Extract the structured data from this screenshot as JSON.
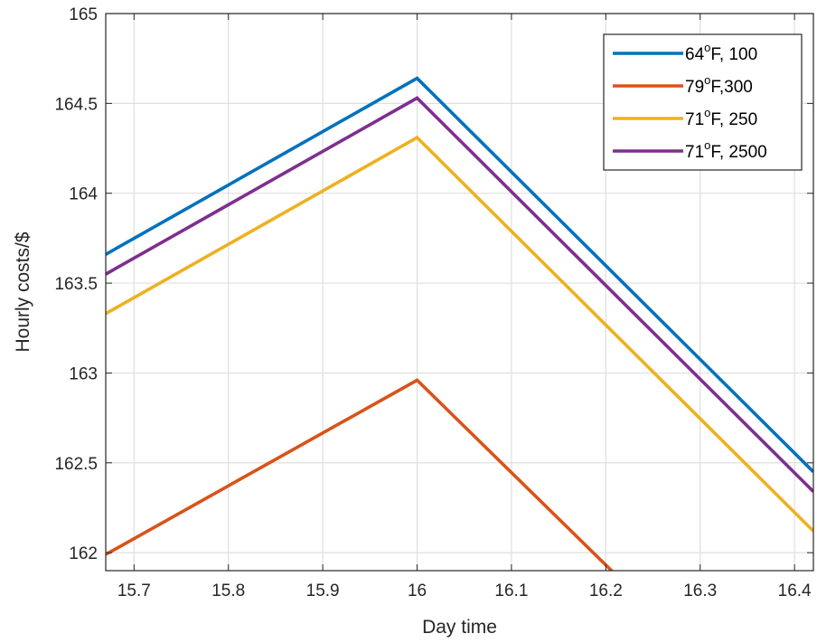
{
  "chart_data": {
    "type": "line",
    "xlabel": "Day time",
    "ylabel": "Hourly costs/$",
    "xlim": [
      15.67,
      16.42
    ],
    "ylim": [
      161.9,
      165
    ],
    "xticks": [
      15.7,
      15.8,
      15.9,
      16,
      16.1,
      16.2,
      16.3,
      16.4
    ],
    "xtick_labels": [
      "15.7",
      "15.8",
      "15.9",
      "16",
      "16.1",
      "16.2",
      "16.3",
      "16.4"
    ],
    "yticks": [
      162,
      162.5,
      163,
      163.5,
      164,
      164.5,
      165
    ],
    "ytick_labels": [
      "162",
      "162.5",
      "163",
      "163.5",
      "164",
      "164.5",
      "165"
    ],
    "grid": true,
    "legend_position": "top-right",
    "series": [
      {
        "name_main": "64",
        "name_sup": "o",
        "name_rest": "F, 100",
        "color": "#0072BD",
        "x": [
          15.67,
          16.0,
          16.42
        ],
        "y": [
          163.66,
          164.64,
          162.45
        ]
      },
      {
        "name_main": "79",
        "name_sup": "o",
        "name_rest": "F,300",
        "color": "#D95319",
        "x": [
          15.67,
          16.0,
          16.21
        ],
        "y": [
          161.99,
          162.96,
          161.88
        ]
      },
      {
        "name_main": "71",
        "name_sup": "o",
        "name_rest": "F, 250",
        "color": "#EDB120",
        "x": [
          15.67,
          16.0,
          16.42
        ],
        "y": [
          163.33,
          164.31,
          162.12
        ]
      },
      {
        "name_main": "71",
        "name_sup": "o",
        "name_rest": "F, 2500",
        "color": "#7E2F8E",
        "x": [
          15.67,
          16.0,
          16.42
        ],
        "y": [
          163.55,
          164.53,
          162.34
        ]
      }
    ]
  }
}
